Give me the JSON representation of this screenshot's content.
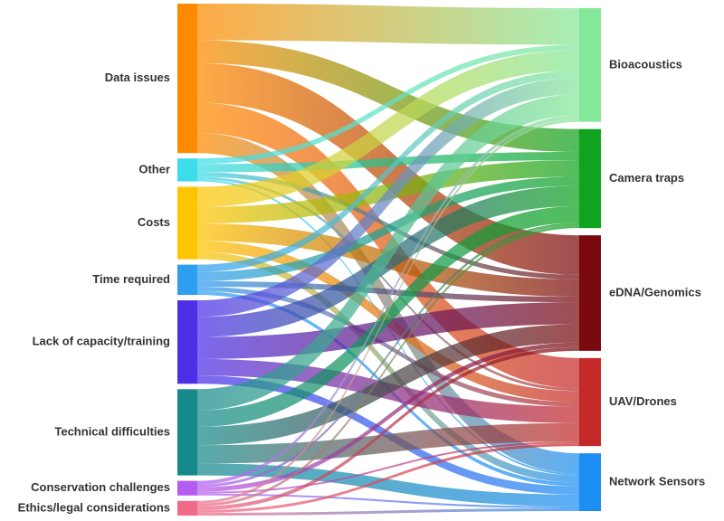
{
  "sources": [
    {
      "id": "data",
      "label": "Data issues",
      "color": "#FF8A00"
    },
    {
      "id": "other",
      "label": "Other",
      "color": "#3DDCEB"
    },
    {
      "id": "costs",
      "label": "Costs",
      "color": "#FFC400"
    },
    {
      "id": "time",
      "label": "Time required",
      "color": "#2E9EF0"
    },
    {
      "id": "lack",
      "label": "Lack of capacity/training",
      "color": "#4B2EE6"
    },
    {
      "id": "tech",
      "label": "Technical difficulties",
      "color": "#168A8A"
    },
    {
      "id": "cons",
      "label": "Conservation challenges",
      "color": "#B55CF0"
    },
    {
      "id": "ethics",
      "label": "Ethics/legal considerations",
      "color": "#F06A8A"
    }
  ],
  "targets": [
    {
      "id": "bio",
      "label": "Bioacoustics",
      "color": "#86E89A"
    },
    {
      "id": "cam",
      "label": "Camera traps",
      "color": "#0FA31F"
    },
    {
      "id": "edna",
      "label": "eDNA/Genomics",
      "color": "#7A0A0F"
    },
    {
      "id": "uav",
      "label": "UAV/Drones",
      "color": "#C42A2A"
    },
    {
      "id": "net",
      "label": "Network Sensors",
      "color": "#1E8FF2"
    }
  ],
  "flows": [
    {
      "source": "data",
      "target": "bio",
      "value": 40
    },
    {
      "source": "data",
      "target": "cam",
      "value": 25
    },
    {
      "source": "data",
      "target": "edna",
      "value": 43
    },
    {
      "source": "data",
      "target": "uav",
      "value": 33
    },
    {
      "source": "data",
      "target": "net",
      "value": 22
    },
    {
      "source": "other",
      "target": "bio",
      "value": 6
    },
    {
      "source": "other",
      "target": "cam",
      "value": 9
    },
    {
      "source": "other",
      "target": "edna",
      "value": 5
    },
    {
      "source": "other",
      "target": "uav",
      "value": 3
    },
    {
      "source": "other",
      "target": "net",
      "value": 2
    },
    {
      "source": "costs",
      "target": "bio",
      "value": 22
    },
    {
      "source": "costs",
      "target": "cam",
      "value": 18
    },
    {
      "source": "costs",
      "target": "edna",
      "value": 19
    },
    {
      "source": "costs",
      "target": "uav",
      "value": 12
    },
    {
      "source": "costs",
      "target": "net",
      "value": 8
    },
    {
      "source": "time",
      "target": "bio",
      "value": 8
    },
    {
      "source": "time",
      "target": "cam",
      "value": 10
    },
    {
      "source": "time",
      "target": "edna",
      "value": 6
    },
    {
      "source": "time",
      "target": "uav",
      "value": 5
    },
    {
      "source": "time",
      "target": "net",
      "value": 4
    },
    {
      "source": "lack",
      "target": "bio",
      "value": 18
    },
    {
      "source": "lack",
      "target": "cam",
      "value": 22
    },
    {
      "source": "lack",
      "target": "edna",
      "value": 24
    },
    {
      "source": "lack",
      "target": "uav",
      "value": 18
    },
    {
      "source": "lack",
      "target": "net",
      "value": 9
    },
    {
      "source": "tech",
      "target": "bio",
      "value": 23
    },
    {
      "source": "tech",
      "target": "cam",
      "value": 18
    },
    {
      "source": "tech",
      "target": "edna",
      "value": 20
    },
    {
      "source": "tech",
      "target": "uav",
      "value": 20
    },
    {
      "source": "tech",
      "target": "net",
      "value": 13
    },
    {
      "source": "cons",
      "target": "bio",
      "value": 4
    },
    {
      "source": "cons",
      "target": "cam",
      "value": 3
    },
    {
      "source": "cons",
      "target": "edna",
      "value": 5
    },
    {
      "source": "cons",
      "target": "uav",
      "value": 2
    },
    {
      "source": "cons",
      "target": "net",
      "value": 2
    },
    {
      "source": "ethics",
      "target": "bio",
      "value": 3
    },
    {
      "source": "ethics",
      "target": "cam",
      "value": 3
    },
    {
      "source": "ethics",
      "target": "edna",
      "value": 4
    },
    {
      "source": "ethics",
      "target": "uav",
      "value": 3
    },
    {
      "source": "ethics",
      "target": "net",
      "value": 3
    }
  ]
}
